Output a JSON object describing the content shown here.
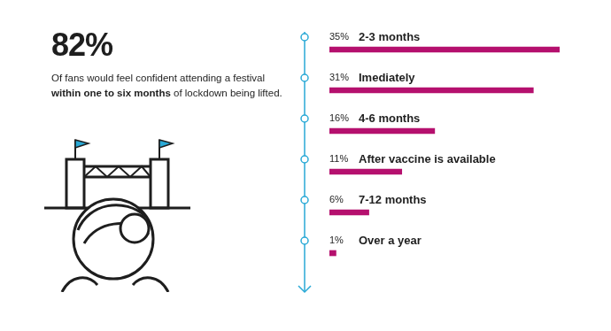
{
  "header": {
    "headline": "82%",
    "description": [
      {
        "text": "Of fans would feel confident attending a festival "
      },
      {
        "text": "within one to six months",
        "bold": true
      },
      {
        "text": " of lockdown being lifted."
      }
    ]
  },
  "chart_data": {
    "type": "bar",
    "orientation": "horizontal",
    "categories": [
      "2-3 months",
      "Imediately",
      "4-6 months",
      "After vaccine is available",
      "7-12 months",
      "Over a year"
    ],
    "values": [
      35,
      31,
      16,
      11,
      6,
      1
    ],
    "value_labels": [
      "35%",
      "31%",
      "16%",
      "11%",
      "6%",
      "1%"
    ],
    "color": "#b5106e",
    "xlim": [
      0,
      35
    ],
    "data_labels": true,
    "tick_labels": false,
    "grid": false
  }
}
